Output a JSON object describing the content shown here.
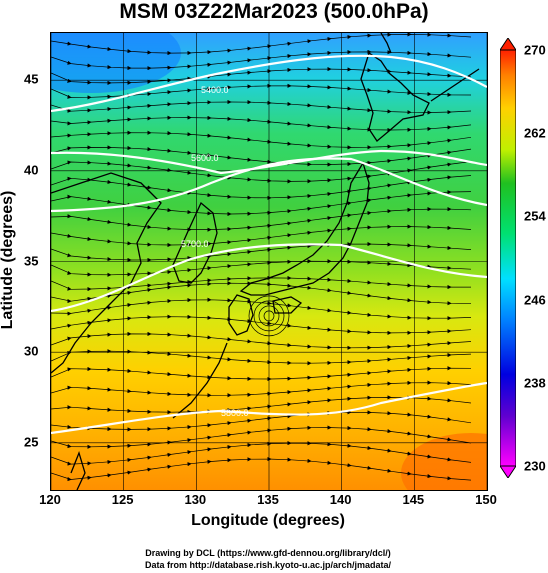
{
  "title": "MSM 03Z22Mar2023 (500.0hPa)",
  "axes": {
    "xlabel": "Longitude (degrees)",
    "ylabel": "Latitude  (degrees)",
    "lon_range": [
      120,
      150
    ],
    "lat_range": [
      22.4,
      47.6
    ],
    "xticks": [
      "120",
      "125",
      "130",
      "135",
      "140",
      "145",
      "150"
    ],
    "yticks": [
      "25",
      "30",
      "35",
      "40",
      "45"
    ],
    "grid": true
  },
  "colorbar": {
    "range": [
      230,
      270
    ],
    "ticks": [
      "270",
      "262",
      "254",
      "246",
      "238",
      "230"
    ],
    "colors": [
      "#ff00ff",
      "#0000d0",
      "#0080ff",
      "#00e0ff",
      "#00e070",
      "#20c020",
      "#c0f000",
      "#ffd000",
      "#ff9000",
      "#ff2000"
    ]
  },
  "contours": {
    "labels": [
      "5400.0",
      "5600.0",
      "5700.0",
      "5800.0"
    ]
  },
  "credits": {
    "line1": "Drawing by DCL (https://www.gfd-dennou.org/library/dcl/)",
    "line2": "Data from http://database.rish.kyoto-u.ac.jp/arch/jmadata/"
  }
}
